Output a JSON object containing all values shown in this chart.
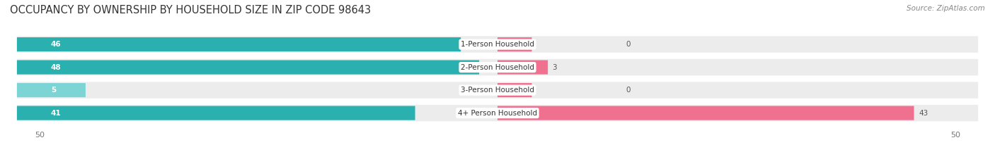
{
  "title": "OCCUPANCY BY OWNERSHIP BY HOUSEHOLD SIZE IN ZIP CODE 98643",
  "source": "Source: ZipAtlas.com",
  "categories": [
    "1-Person Household",
    "2-Person Household",
    "3-Person Household",
    "4+ Person Household"
  ],
  "owner_values": [
    46,
    48,
    5,
    41
  ],
  "renter_values": [
    0,
    3,
    0,
    43
  ],
  "owner_color_dark": "#2bb0b0",
  "owner_color_light": "#7dd4d4",
  "renter_color": "#f07090",
  "row_bg_color": "#ececec",
  "axis_max": 50,
  "title_fontsize": 10.5,
  "source_fontsize": 7.5,
  "label_fontsize": 7.5,
  "value_fontsize": 7.5,
  "tick_fontsize": 8,
  "legend_fontsize": 8,
  "background_color": "#ffffff"
}
